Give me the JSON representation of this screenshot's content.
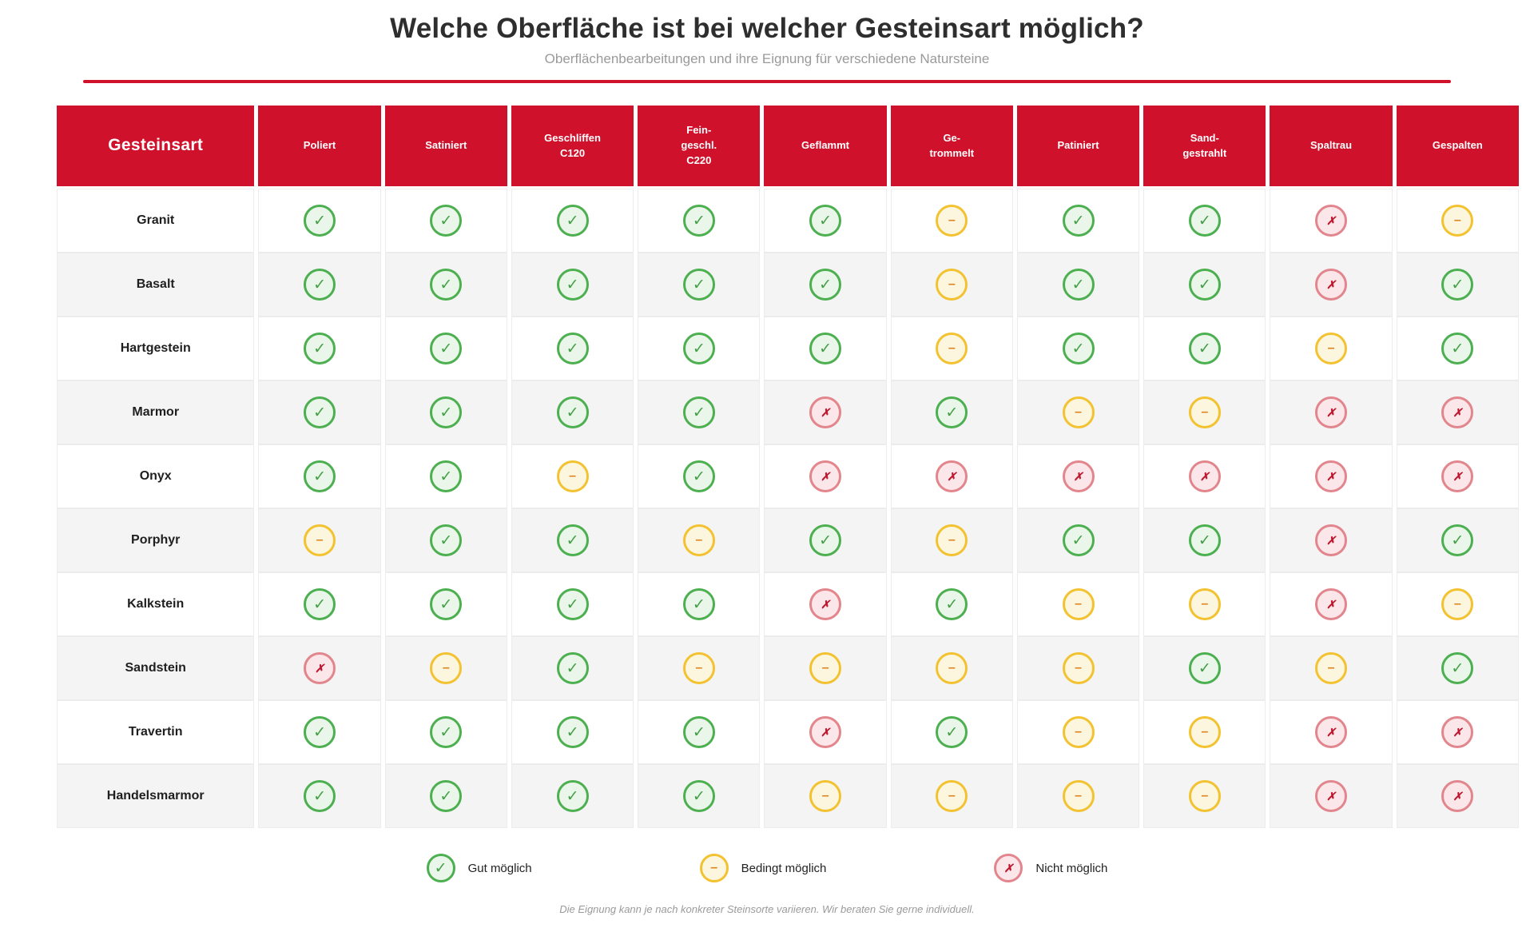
{
  "page": {
    "title": "Welche Oberfläche ist bei welcher Gesteinsart möglich?",
    "subtitle": "Oberflächenbearbeitungen und ihre Eignung für verschiedene Natursteine",
    "footnote": "Die Eignung kann je nach konkreter Steinsorte variieren. Wir beraten Sie gerne individuell."
  },
  "colors": {
    "accent_red": "#D0112B",
    "ok_border": "#4CAF50",
    "ok_bg": "#EAF6E9",
    "ok_glyph": "#43A047",
    "mid_border": "#F2C231",
    "mid_bg": "#FCF6DF",
    "mid_glyph": "#E0821A",
    "no_border": "#E2858D",
    "no_bg": "#FBE7E9",
    "no_glyph": "#BE1931",
    "row_alt_bg": "#F4F4F4"
  },
  "icons": {
    "ok": "✓",
    "mid": "–",
    "no": "✗"
  },
  "chart_data": {
    "type": "table",
    "title": "Welche Oberfläche ist bei welcher Gesteinsart möglich?",
    "subtitle": "Oberflächenbearbeitungen und ihre Eignung für verschiedene Natursteine",
    "row_header": "Gesteinsart",
    "columns": [
      "Poliert",
      "Satiniert",
      "Geschliffen\nC120",
      "Fein-\ngeschl.\nC220",
      "Geflammt",
      "Ge-\ntrommelt",
      "Patiniert",
      "Sand-\ngestrahlt",
      "Spaltrau",
      "Gespalten"
    ],
    "value_meanings": {
      "ok": "Gut möglich",
      "mid": "Bedingt möglich",
      "no": "Nicht möglich"
    },
    "rows": [
      {
        "label": "Granit",
        "values": [
          "ok",
          "ok",
          "ok",
          "ok",
          "ok",
          "mid",
          "ok",
          "ok",
          "no",
          "mid"
        ]
      },
      {
        "label": "Basalt",
        "values": [
          "ok",
          "ok",
          "ok",
          "ok",
          "ok",
          "mid",
          "ok",
          "ok",
          "no",
          "ok"
        ]
      },
      {
        "label": "Hartgestein",
        "values": [
          "ok",
          "ok",
          "ok",
          "ok",
          "ok",
          "mid",
          "ok",
          "ok",
          "mid",
          "ok"
        ]
      },
      {
        "label": "Marmor",
        "values": [
          "ok",
          "ok",
          "ok",
          "ok",
          "no",
          "ok",
          "mid",
          "mid",
          "no",
          "no"
        ]
      },
      {
        "label": "Onyx",
        "values": [
          "ok",
          "ok",
          "mid",
          "ok",
          "no",
          "no",
          "no",
          "no",
          "no",
          "no"
        ]
      },
      {
        "label": "Porphyr",
        "values": [
          "mid",
          "ok",
          "ok",
          "mid",
          "ok",
          "mid",
          "ok",
          "ok",
          "no",
          "ok"
        ]
      },
      {
        "label": "Kalkstein",
        "values": [
          "ok",
          "ok",
          "ok",
          "ok",
          "no",
          "ok",
          "mid",
          "mid",
          "no",
          "mid"
        ]
      },
      {
        "label": "Sandstein",
        "values": [
          "no",
          "mid",
          "ok",
          "mid",
          "mid",
          "mid",
          "mid",
          "ok",
          "mid",
          "ok"
        ]
      },
      {
        "label": "Travertin",
        "values": [
          "ok",
          "ok",
          "ok",
          "ok",
          "no",
          "ok",
          "mid",
          "mid",
          "no",
          "no"
        ]
      },
      {
        "label": "Handelsmarmor",
        "values": [
          "ok",
          "ok",
          "ok",
          "ok",
          "mid",
          "mid",
          "mid",
          "mid",
          "no",
          "no"
        ]
      }
    ],
    "legend": [
      {
        "status": "ok",
        "label": "Gut möglich"
      },
      {
        "status": "mid",
        "label": "Bedingt möglich"
      },
      {
        "status": "no",
        "label": "Nicht möglich"
      }
    ],
    "legend_position": "bottom-center",
    "grid": "alternating-row-stripes"
  }
}
